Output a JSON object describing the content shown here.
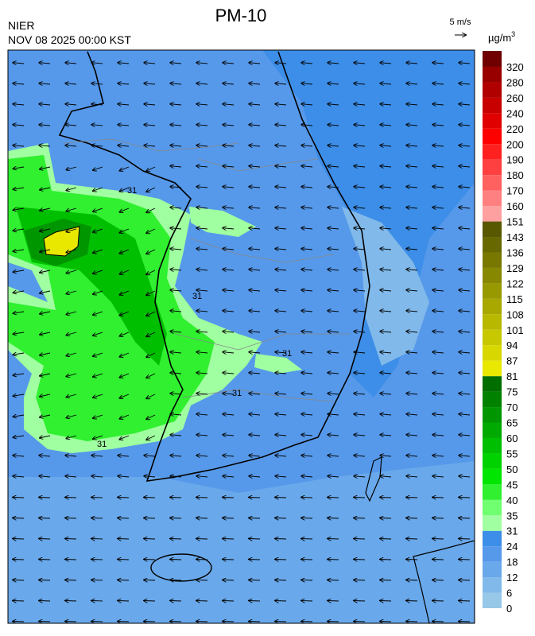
{
  "header": {
    "title": "PM-10",
    "agency": "NIER",
    "datetime": "NOV 08 2025 00:00 KST",
    "wind_scale": "5 m/s"
  },
  "map": {
    "contour_labels": [
      "31",
      "31",
      "31",
      "31",
      "31"
    ]
  },
  "legend": {
    "unit": "µg/m",
    "unit_power": "3",
    "ticks": [
      0,
      6,
      12,
      18,
      24,
      31,
      35,
      40,
      45,
      50,
      55,
      60,
      65,
      70,
      75,
      81,
      87,
      94,
      101,
      108,
      115,
      122,
      129,
      136,
      143,
      151,
      160,
      170,
      180,
      190,
      200,
      220,
      240,
      260,
      280,
      320
    ],
    "colors": [
      "#97c8e8",
      "#80b9ea",
      "#69a8ea",
      "#5699ea",
      "#3d8ee8",
      "#a0ffa0",
      "#70ff70",
      "#30f030",
      "#00e600",
      "#00d200",
      "#00be00",
      "#00aa00",
      "#009600",
      "#008200",
      "#006e00",
      "#e8e800",
      "#d8d800",
      "#c8c800",
      "#b8b800",
      "#a8a800",
      "#989800",
      "#888800",
      "#787800",
      "#686800",
      "#585800",
      "#ffa0a0",
      "#ff8080",
      "#ff6060",
      "#ff4040",
      "#ff2020",
      "#ff0000",
      "#e00000",
      "#c80000",
      "#b00000",
      "#980000",
      "#700000"
    ]
  }
}
